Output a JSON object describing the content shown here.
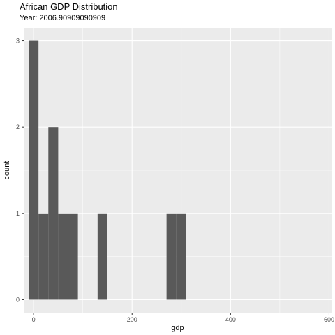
{
  "chart_data": {
    "type": "bar",
    "title": "African GDP Distribution",
    "subtitle": "Year: 2006.90909090909",
    "xlabel": "gdp",
    "ylabel": "count",
    "xlim": [
      -20,
      605
    ],
    "ylim": [
      -0.15,
      3.15
    ],
    "x_ticks": [
      0,
      200,
      400,
      600
    ],
    "y_ticks": [
      0,
      1,
      2,
      3
    ],
    "grid": true,
    "bins": [
      {
        "start": -10,
        "end": 10,
        "count": 3
      },
      {
        "start": 10,
        "end": 30,
        "count": 1
      },
      {
        "start": 30,
        "end": 50,
        "count": 2
      },
      {
        "start": 50,
        "end": 70,
        "count": 1
      },
      {
        "start": 70,
        "end": 90,
        "count": 1
      },
      {
        "start": 130,
        "end": 150,
        "count": 1
      },
      {
        "start": 270,
        "end": 290,
        "count": 1
      },
      {
        "start": 290,
        "end": 310,
        "count": 1
      }
    ],
    "colors": {
      "panel": "#ebebeb",
      "bar": "#595959",
      "grid": "#ffffff"
    }
  }
}
